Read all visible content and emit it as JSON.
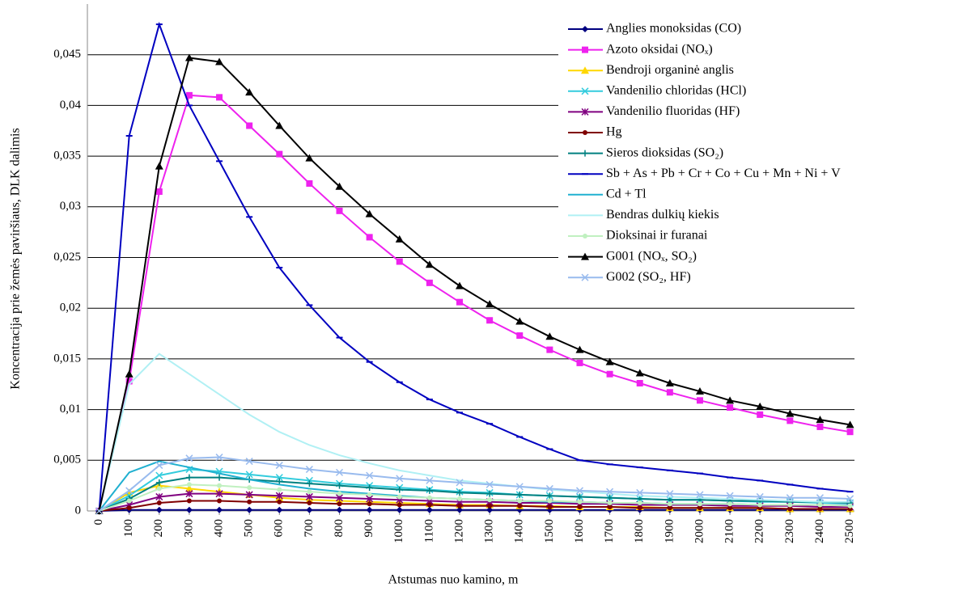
{
  "chart_data": {
    "type": "line",
    "x_label": "Atstumas nuo kamino, m",
    "y_label": "Koncentracija prie žemės paviršiaus, DLK dalimis",
    "categories": [
      0,
      100,
      200,
      300,
      400,
      500,
      600,
      700,
      800,
      900,
      1000,
      1100,
      1200,
      1300,
      1400,
      1500,
      1600,
      1700,
      1800,
      1900,
      2000,
      2100,
      2200,
      2300,
      2400,
      2500
    ],
    "ylim": [
      0,
      0.05
    ],
    "yticks": [
      0,
      {
        "value": 0.005,
        "label": "0,005"
      },
      {
        "value": 0.01,
        "label": "0,01"
      },
      {
        "value": 0.015,
        "label": "0,015"
      },
      {
        "value": 0.02,
        "label": "0,02"
      },
      {
        "value": 0.025,
        "label": "0,025"
      },
      {
        "value": 0.03,
        "label": "0,03"
      },
      {
        "value": 0.035,
        "label": "0,035"
      },
      {
        "value": 0.04,
        "label": "0,04"
      },
      {
        "value": 0.045,
        "label": "0,045"
      }
    ],
    "grid": true,
    "legend": "right",
    "series": [
      {
        "name": "Anglies monoksidas (CO)",
        "color": "#000080",
        "marker": "diamond",
        "values": [
          0,
          0.0001,
          0.0001,
          0.0001,
          0.0001,
          0.0001,
          0.0001,
          0.0001,
          0.0001,
          0.0001,
          0.0001,
          0.0001,
          0.0001,
          0.0001,
          0.0001,
          0.0001,
          0.0001,
          0.0001,
          0.0001,
          0.0001,
          0.0001,
          0.0001,
          0.0001,
          0.0001,
          0.0001,
          0.0001
        ]
      },
      {
        "name": "Azoto oksidai (NOₓ)",
        "color": "#ee22ee",
        "marker": "square",
        "values": [
          0,
          0.0128,
          0.0315,
          0.041,
          0.0408,
          0.038,
          0.0352,
          0.0323,
          0.0296,
          0.027,
          0.0246,
          0.0225,
          0.0206,
          0.0188,
          0.0173,
          0.0159,
          0.0146,
          0.0135,
          0.0126,
          0.0117,
          0.0109,
          0.0102,
          0.0095,
          0.0089,
          0.0083,
          0.0078
        ]
      },
      {
        "name": "Bendroji organinė anglis",
        "color": "#ffd700",
        "marker": "triangle",
        "values": [
          0,
          0.0018,
          0.0025,
          0.0022,
          0.0019,
          0.0016,
          0.0013,
          0.0011,
          0.001,
          0.0009,
          0.0008,
          0.0007,
          0.0006,
          0.0006,
          0.0005,
          0.0005,
          0.0004,
          0.0004,
          0.0004,
          0.0003,
          0.0003,
          0.0003,
          0.0003,
          0.0002,
          0.0002,
          0.0002
        ]
      },
      {
        "name": "Vandenilio chloridas (HCl)",
        "color": "#33ccdd",
        "marker": "x",
        "values": [
          0,
          0.0015,
          0.0035,
          0.0041,
          0.0039,
          0.0036,
          0.0033,
          0.003,
          0.0027,
          0.0025,
          0.0023,
          0.0021,
          0.0019,
          0.0018,
          0.0016,
          0.0015,
          0.0014,
          0.0013,
          0.0012,
          0.0011,
          0.0011,
          0.001,
          0.0009,
          0.0009,
          0.0008,
          0.0008
        ]
      },
      {
        "name": "Vandenilio fluoridas (HF)",
        "color": "#800080",
        "marker": "star",
        "values": [
          0,
          0.0006,
          0.0014,
          0.0017,
          0.0017,
          0.0016,
          0.0015,
          0.0014,
          0.0013,
          0.0012,
          0.0011,
          0.001,
          0.0009,
          0.0009,
          0.0008,
          0.0008,
          0.0007,
          0.0007,
          0.0006,
          0.0006,
          0.0006,
          0.0005,
          0.0005,
          0.0005,
          0.0004,
          0.0004
        ]
      },
      {
        "name": "Hg",
        "color": "#800000",
        "marker": "circle",
        "values": [
          0,
          0.0003,
          0.0008,
          0.001,
          0.001,
          0.0009,
          0.0009,
          0.0008,
          0.0007,
          0.0007,
          0.0006,
          0.0006,
          0.0005,
          0.0005,
          0.0005,
          0.0004,
          0.0004,
          0.0004,
          0.0003,
          0.0003,
          0.0003,
          0.0003,
          0.0003,
          0.0002,
          0.0002,
          0.0002
        ]
      },
      {
        "name": "Sieros dioksidas (SO₂)",
        "color": "#008080",
        "marker": "plus",
        "values": [
          0,
          0.0012,
          0.0028,
          0.0033,
          0.0033,
          0.0031,
          0.0029,
          0.0027,
          0.0025,
          0.0023,
          0.0021,
          0.002,
          0.0018,
          0.0017,
          0.0016,
          0.0015,
          0.0014,
          0.0013,
          0.0012,
          0.0011,
          0.0011,
          0.001,
          0.001,
          0.0009,
          0.0009,
          0.0008
        ]
      },
      {
        "name": "Sb + As + Pb + Cr + Co + Cu + Mn + Ni + V",
        "color": "#0000c0",
        "marker": "dash",
        "values": [
          0,
          0.037,
          0.048,
          0.04,
          0.0345,
          0.029,
          0.024,
          0.0203,
          0.0171,
          0.0147,
          0.0127,
          0.011,
          0.0097,
          0.0086,
          0.0073,
          0.0061,
          0.005,
          0.0046,
          0.0043,
          0.004,
          0.0037,
          0.0033,
          0.003,
          0.0026,
          0.0022,
          0.0019
        ]
      },
      {
        "name": "Cd + Tl",
        "color": "#20b0d0",
        "marker": "none",
        "values": [
          0,
          0.0038,
          0.0049,
          0.0043,
          0.0037,
          0.0031,
          0.0026,
          0.0022,
          0.0019,
          0.0017,
          0.0015,
          0.0013,
          0.0012,
          0.0011,
          0.001,
          0.0009,
          0.0009,
          0.0008,
          0.0008,
          0.0007,
          0.0007,
          0.0007,
          0.0006,
          0.0006,
          0.0006,
          0.0006
        ]
      },
      {
        "name": "Bendras dulkių kiekis",
        "color": "#b0f0f4",
        "marker": "none",
        "values": [
          0,
          0.0125,
          0.0155,
          0.0135,
          0.0115,
          0.0095,
          0.0078,
          0.0065,
          0.0055,
          0.0047,
          0.004,
          0.0035,
          0.003,
          0.0027,
          0.0024,
          0.0021,
          0.0019,
          0.0017,
          0.0015,
          0.0014,
          0.0013,
          0.0012,
          0.0011,
          0.001,
          0.0009,
          0.0009
        ]
      },
      {
        "name": "Dioksinai ir furanai",
        "color": "#c0f0c0",
        "marker": "circle",
        "values": [
          0,
          0.001,
          0.0022,
          0.0026,
          0.0025,
          0.0023,
          0.0021,
          0.0019,
          0.0017,
          0.0016,
          0.0014,
          0.0013,
          0.0012,
          0.0011,
          0.001,
          0.001,
          0.0009,
          0.0008,
          0.0008,
          0.0007,
          0.0007,
          0.0007,
          0.0006,
          0.0006,
          0.0006,
          0.0005
        ]
      },
      {
        "name": "G001 (NOₓ, SO₂)",
        "color": "#000000",
        "marker": "triangle",
        "values": [
          0,
          0.0135,
          0.034,
          0.0447,
          0.0443,
          0.0413,
          0.038,
          0.0348,
          0.032,
          0.0293,
          0.0268,
          0.0243,
          0.0222,
          0.0204,
          0.0187,
          0.0172,
          0.0159,
          0.0147,
          0.0136,
          0.0126,
          0.0118,
          0.0109,
          0.0103,
          0.0096,
          0.009,
          0.0085
        ]
      },
      {
        "name": "G002 (SO₂, HF)",
        "color": "#99bbee",
        "marker": "x",
        "values": [
          0,
          0.002,
          0.0045,
          0.0052,
          0.0053,
          0.0049,
          0.0045,
          0.0041,
          0.0038,
          0.0035,
          0.0032,
          0.003,
          0.0028,
          0.0026,
          0.0024,
          0.0022,
          0.002,
          0.0019,
          0.0018,
          0.0017,
          0.0016,
          0.0015,
          0.0014,
          0.0013,
          0.0013,
          0.0012
        ]
      }
    ]
  }
}
